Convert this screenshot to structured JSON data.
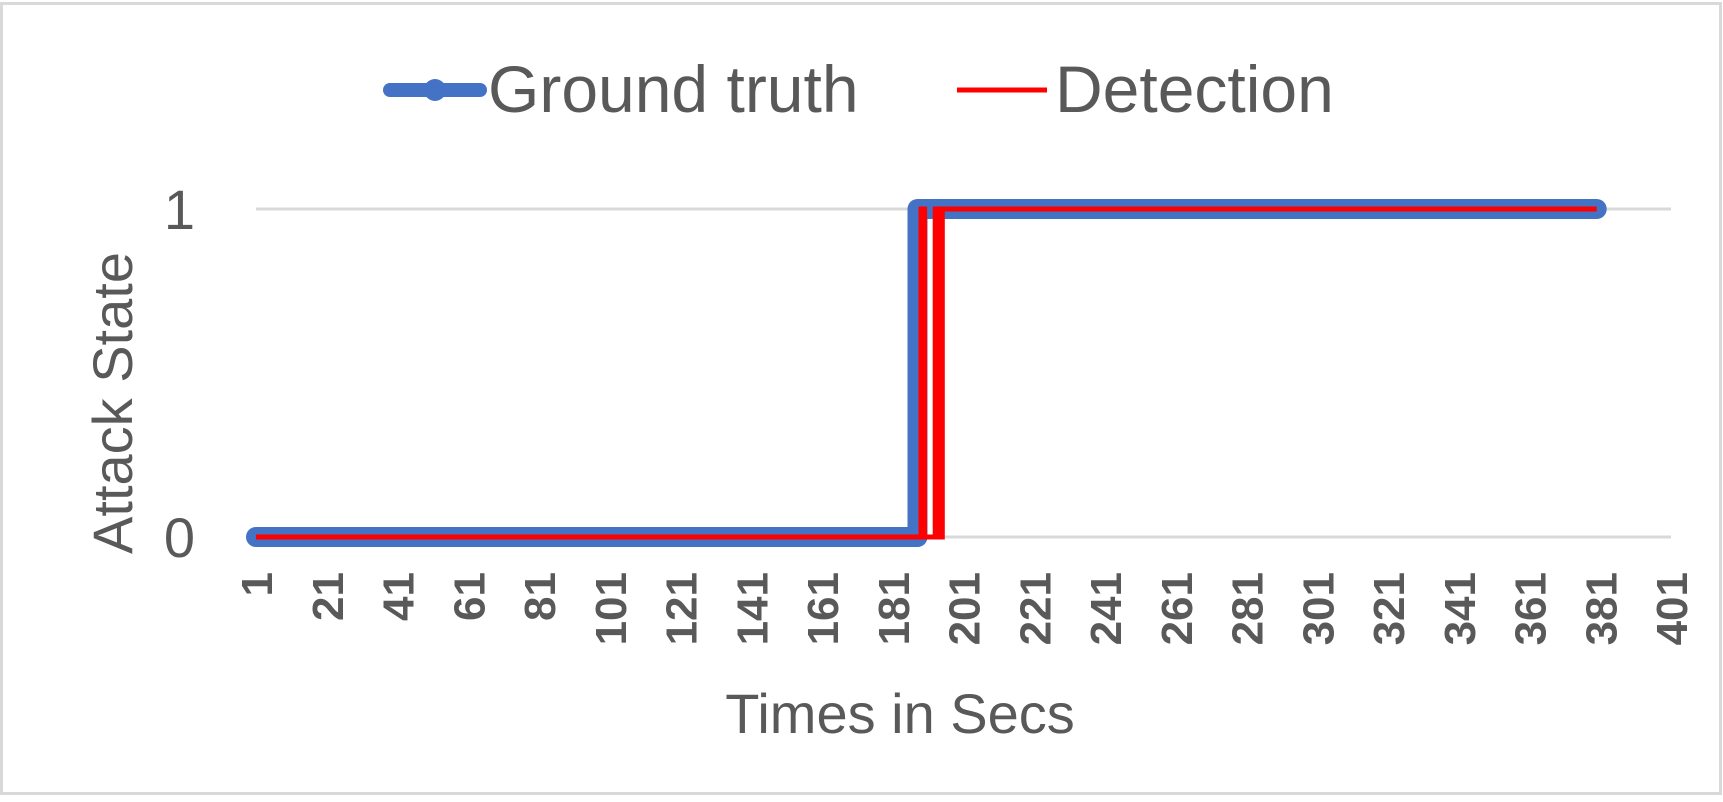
{
  "chart_data": {
    "type": "line",
    "title": "",
    "xlabel": "Times in Secs",
    "ylabel": "Attack State",
    "x_ticks": [
      1,
      21,
      41,
      61,
      81,
      101,
      121,
      141,
      161,
      181,
      201,
      221,
      241,
      261,
      281,
      301,
      321,
      341,
      361,
      381,
      401
    ],
    "y_ticks": [
      0,
      1
    ],
    "xlim": [
      1,
      401
    ],
    "ylim": [
      0,
      1
    ],
    "grid": "horizontal",
    "legend_position": "top",
    "series": [
      {
        "name": "Ground truth",
        "color": "#4472C4",
        "step_points": [
          [
            1,
            0
          ],
          [
            188,
            0
          ],
          [
            188,
            1
          ],
          [
            380,
            1
          ]
        ]
      },
      {
        "name": "Detection",
        "color": "#FF0000",
        "step_points": [
          [
            1,
            0
          ],
          [
            189,
            0
          ],
          [
            189,
            1
          ],
          [
            190,
            1
          ],
          [
            190,
            0
          ],
          [
            193,
            0
          ],
          [
            193,
            1
          ],
          [
            194,
            1
          ],
          [
            194,
            0
          ],
          [
            195,
            0
          ],
          [
            195,
            1
          ],
          [
            380,
            1
          ]
        ]
      }
    ]
  }
}
